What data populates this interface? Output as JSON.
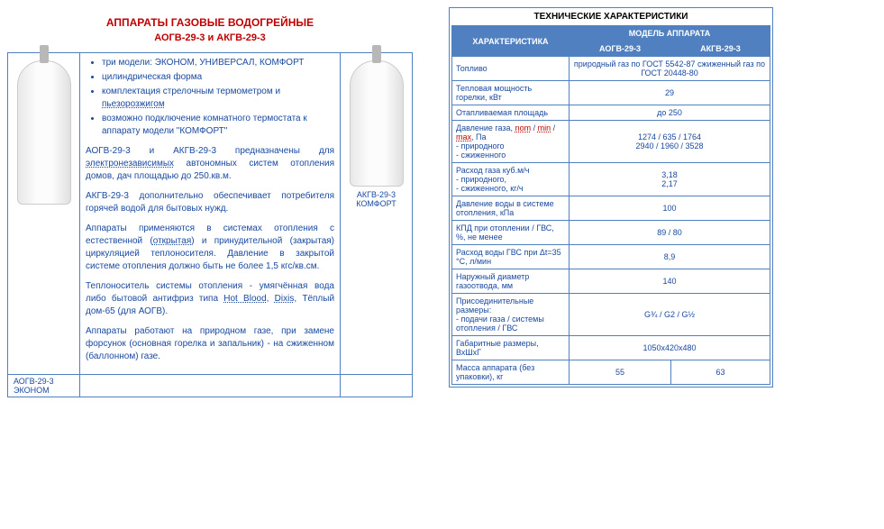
{
  "title": "АППАРАТЫ ГАЗОВЫЕ ВОДОГРЕЙНЫЕ",
  "subtitle": "АОГВ-29-3 и АКГВ-29-3",
  "bullets": [
    "три модели: ЭКОНОМ, УНИВЕРСАЛ, КОМФОРТ",
    "цилиндрическая форма",
    "комплектация стрелочным термометром и пьезорозжигом",
    "возможно подключение комнатного термостата к аппарату модели \"КОМФОРТ\""
  ],
  "para1a": "АОГВ-29-3 и АКГВ-29-3 предназначены для ",
  "para1b": "электронезависимых",
  "para1c": " автономных систем отопления домов, дач площадью до 250.кв.м.",
  "para2": "АКГВ-29-3 дополнительно обеспечивает потребителя горячей водой для бытовых нужд.",
  "para3a": "Аппараты применяются в системах отопления с естественной (",
  "para3b": "открытая",
  "para3c": ") и принудительной (закрытая) циркуляцией теплоносителя. Давление в закрытой системе отопления должно быть не более 1,5 кгс/кв.см.",
  "para4a": "Теплоноситель системы отопления - умягчённая вода либо бытовой антифриз типа ",
  "para4b": "Hot Blood",
  "para4c": ", ",
  "para4d": "Dixis",
  "para4e": ", Тёплый дом-65 (для АОГВ).",
  "para5": "Аппараты работают на природном газе, при замене форсунок (основная горелка и запальник) - на сжиженном (баллонном) газе.",
  "caption1": "АКГВ-29-3 КОМФОРТ",
  "caption2": "АОГВ-29-3 ЭКОНОМ",
  "spec": {
    "title": "ТЕХНИЧЕСКИЕ ХАРАКТЕРИСТИКИ",
    "h1": "ХАРАКТЕРИСТИКА",
    "h2": "МОДЕЛЬ АППАРАТА",
    "h2a": "АОГВ-29-3",
    "h2b": "АКГВ-29-3",
    "rows": [
      {
        "p": "Топливо",
        "v": "природный газ по ГОСТ 5542-87 сжиженный газ по ГОСТ 20448-80",
        "span": 2
      },
      {
        "p": "Тепловая мощность горелки, кВт",
        "v": "29",
        "span": 2
      },
      {
        "p": "Отапливаемая площадь",
        "v": "до 250",
        "span": 2
      },
      {
        "p": "Давление газа, nom / min / max, Па\n- природного\n- сжиженного",
        "v": "1274 / 635 / 1764\n2940 / 1960 / 3528",
        "span": 2,
        "nom": true
      },
      {
        "p": "Расход газа куб.м/ч\n- природного,\n- сжиженного, кг/ч",
        "v": "3,18\n2,17",
        "span": 2
      },
      {
        "p": "Давление воды в системе отопления, кПа",
        "v": "100",
        "span": 2
      },
      {
        "p": "КПД при отоплении / ГВС, %, не менее",
        "v": "89 / 80",
        "span": 2
      },
      {
        "p": "Расход воды ГВС при Δt=35 °C, л/мин",
        "v": "8,9",
        "span": 2
      },
      {
        "p": "Наружный диаметр газоотвода, мм",
        "v": "140",
        "span": 2
      },
      {
        "p": "Присоединительные размеры:\n- подачи газа / системы отопления / ГВС",
        "v": "G¾ / G2 / G½",
        "span": 2
      },
      {
        "p": "Габаритные размеры, ВхШхГ",
        "v": "1050х420х480",
        "span": 2
      },
      {
        "p": "Масса аппарата (без упаковки), кг",
        "v1": "55",
        "v2": "63",
        "span": 1
      }
    ]
  }
}
